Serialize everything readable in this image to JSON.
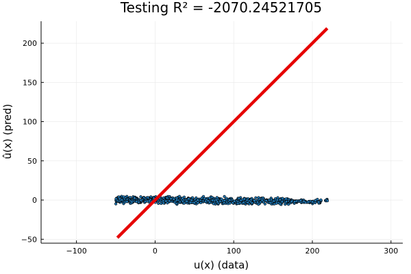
{
  "chart_data": {
    "type": "scatter",
    "title": "Testing R² = -2070.24521705",
    "xlabel": "u(x) (data)",
    "ylabel": "û(x) (pred)",
    "xlim": [
      -145,
      315
    ],
    "ylim": [
      -55,
      228
    ],
    "xticks": [
      -100,
      0,
      100,
      200,
      300
    ],
    "yticks": [
      -50,
      0,
      50,
      100,
      150,
      200
    ],
    "xtick_labels": [
      "−100",
      "0",
      "100",
      "200",
      "300"
    ],
    "ytick_labels": [
      "−50",
      "0",
      "50",
      "100",
      "150",
      "200"
    ],
    "grid": true,
    "legend": "none",
    "series": [
      {
        "kind": "scatter",
        "color": "#1f77b4",
        "edge_color": "#000000",
        "x_range": [
          -50,
          220
        ],
        "y_trend": [
          [
            -50,
            0.5
          ],
          [
            0,
            0
          ],
          [
            100,
            -1
          ],
          [
            200,
            -2
          ],
          [
            220,
            -1.5
          ]
        ],
        "y_spread": 4
      },
      {
        "kind": "line",
        "color": "#e60000",
        "x": [
          -48,
          219
        ],
        "y": [
          -48,
          219
        ]
      }
    ]
  }
}
